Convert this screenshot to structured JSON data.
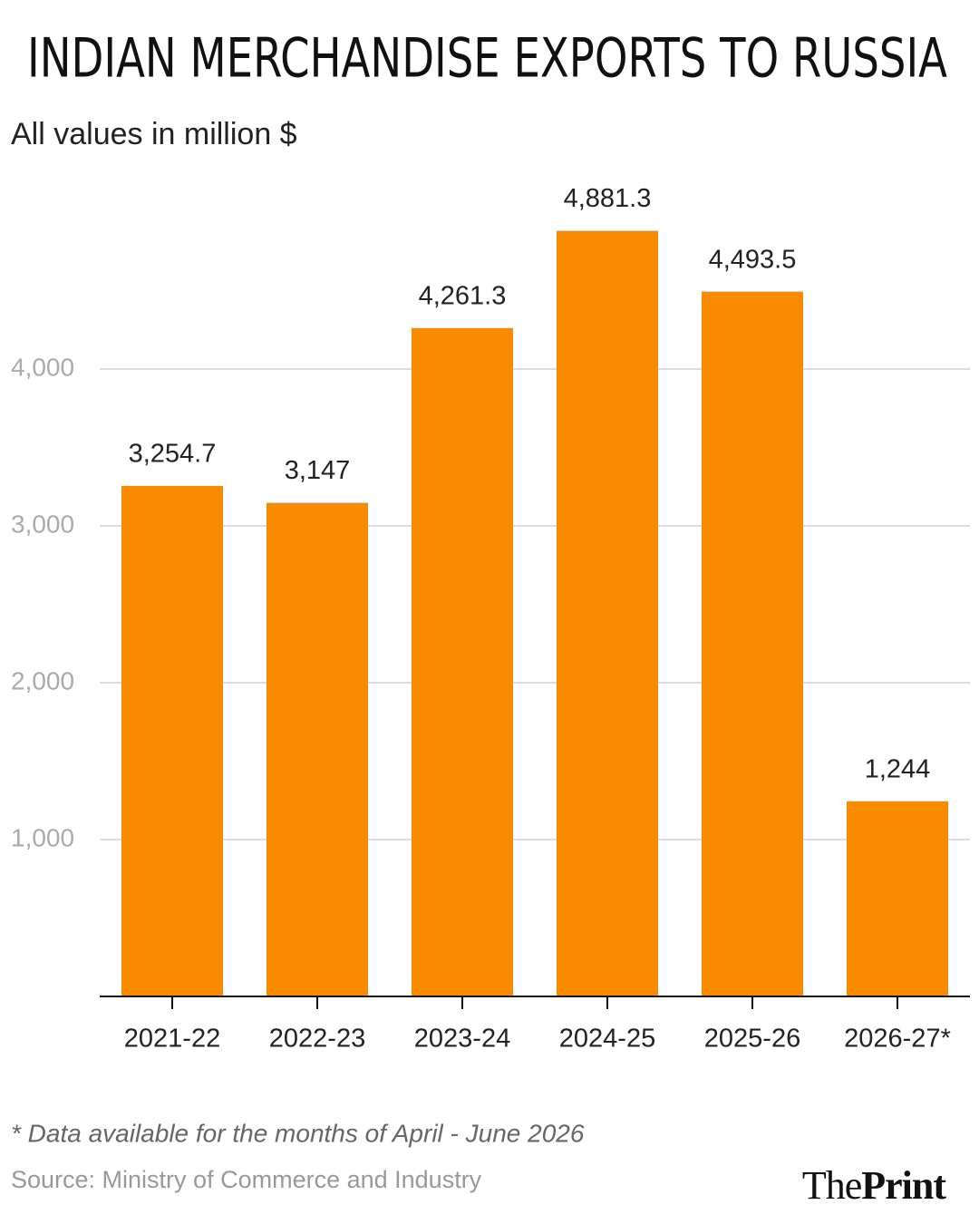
{
  "chart_data": {
    "type": "bar",
    "title": "INDIAN MERCHANDISE EXPORTS TO RUSSIA",
    "subtitle": "All values in million $",
    "categories": [
      "2021-22",
      "2022-23",
      "2023-24",
      "2024-25",
      "2025-26",
      "2026-27*"
    ],
    "values": [
      3254.7,
      3147,
      4261.3,
      4881.3,
      4493.5,
      1244
    ],
    "value_labels": [
      "3,254.7",
      "3,147",
      "4,261.3",
      "4,881.3",
      "4,493.5",
      "1,244"
    ],
    "color": "#f98b00",
    "ylim": [
      0,
      5000
    ],
    "yticks": [
      {
        "value": 1000,
        "label": "1,000"
      },
      {
        "value": 2000,
        "label": "2,000"
      },
      {
        "value": 3000,
        "label": "3,000"
      },
      {
        "value": 4000,
        "label": "4,000"
      }
    ],
    "grid": true,
    "footnote": "* Data available for the months of April - June 2026",
    "source": "Source: Ministry of Commerce and Industry",
    "brand": {
      "prefix": "The",
      "name": "Print"
    }
  }
}
